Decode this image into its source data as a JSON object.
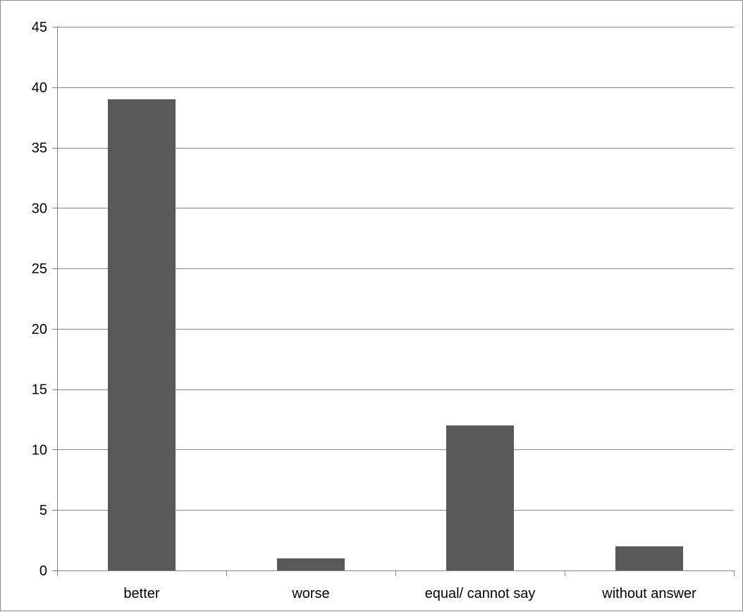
{
  "chart_data": {
    "type": "bar",
    "categories": [
      "better",
      "worse",
      "equal/ cannot say",
      "without answer"
    ],
    "values": [
      39,
      1,
      12,
      2
    ],
    "title": "",
    "xlabel": "",
    "ylabel": "",
    "ylim": [
      0,
      45
    ],
    "yticks": [
      0,
      5,
      10,
      15,
      20,
      25,
      30,
      35,
      40,
      45
    ],
    "grid": true,
    "legend": false,
    "colors": {
      "bar": "#595959",
      "grid": "#868686",
      "axis": "#868686",
      "text": "#000000",
      "border": "#8c8c8c"
    }
  }
}
